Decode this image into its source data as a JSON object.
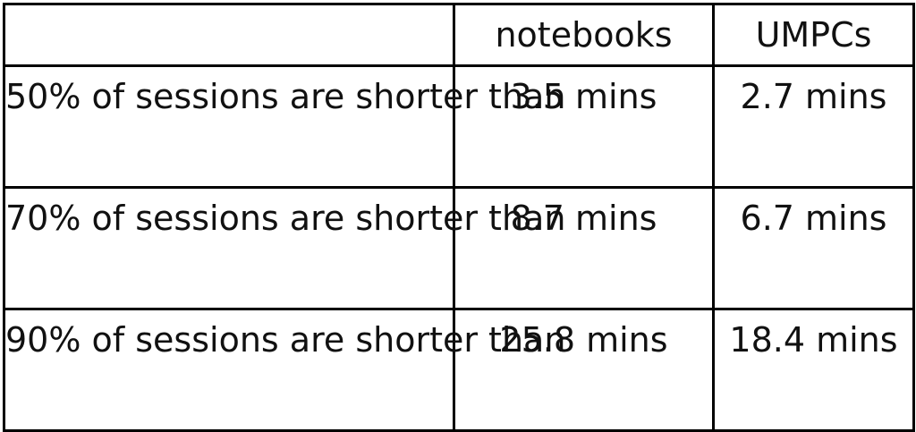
{
  "table": {
    "columns": [
      "",
      "notebooks",
      "UMPCs"
    ],
    "rows": [
      {
        "label": "50% of sessions are shorter than",
        "notebooks": "3.5 mins",
        "umpcs": "2.7 mins"
      },
      {
        "label": "70% of sessions are shorter than",
        "notebooks": "8.7 mins",
        "umpcs": "6.7 mins"
      },
      {
        "label": "90% of sessions are shorter than",
        "notebooks": "25.8 mins",
        "umpcs": "18.4 mins"
      }
    ]
  }
}
